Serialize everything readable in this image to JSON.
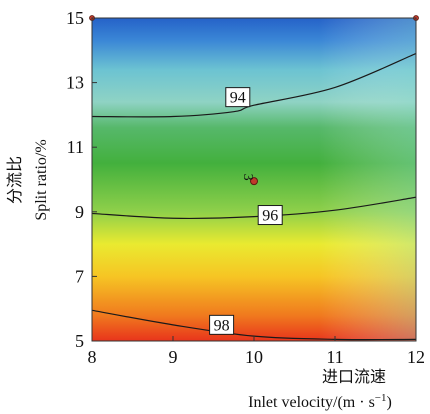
{
  "chart_data": {
    "type": "contour",
    "xlabel_cn": "进口流速",
    "xlabel": "Inlet velocity/(m · s",
    "xlabel_sup": "−1",
    "xlabel_close": ")",
    "ylabel_cn": "分流比",
    "ylabel": "Split ratio/%",
    "xlim": [
      8,
      12
    ],
    "ylim": [
      5,
      15
    ],
    "x_ticks": [
      8,
      9,
      10,
      11,
      12
    ],
    "y_ticks": [
      5,
      7,
      9,
      11,
      13,
      15
    ],
    "colormap": [
      "#e83a1e",
      "#f28a1e",
      "#f6e22a",
      "#8fd04a",
      "#3dae3d",
      "#7ecdc6",
      "#2a6fd0"
    ],
    "contours": [
      {
        "label": "94",
        "x": [
          8,
          9,
          9.75,
          10,
          11,
          12
        ],
        "y": [
          11.95,
          11.95,
          12.1,
          12.3,
          12.85,
          13.9
        ],
        "label_at": [
          9.8,
          12.55
        ]
      },
      {
        "label": "96",
        "x": [
          8,
          9,
          10,
          11,
          12
        ],
        "y": [
          8.95,
          8.8,
          8.85,
          9.05,
          9.45
        ],
        "label_at": [
          10.2,
          8.9
        ]
      },
      {
        "label": "98",
        "x": [
          8,
          9,
          10,
          11,
          12
        ],
        "y": [
          5.95,
          5.5,
          5.15,
          5.05,
          5.05
        ],
        "label_at": [
          9.6,
          5.5
        ]
      }
    ],
    "points": [
      {
        "label": "3",
        "x": 10,
        "y": 9.95
      }
    ],
    "corner_points": [
      {
        "x": 8,
        "y": 15
      },
      {
        "x": 12,
        "y": 15
      }
    ]
  }
}
